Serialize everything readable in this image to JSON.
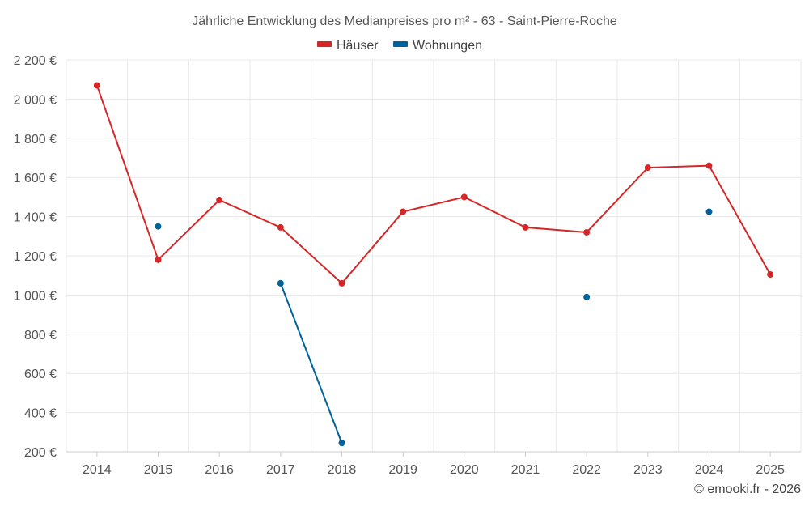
{
  "chart_data": {
    "type": "line",
    "title": "Jährliche Entwicklung des Medianpreises pro m² - 63 - Saint-Pierre-Roche",
    "categories": [
      "2014",
      "2015",
      "2016",
      "2017",
      "2018",
      "2019",
      "2020",
      "2021",
      "2022",
      "2023",
      "2024",
      "2025"
    ],
    "ylim": [
      200,
      2200
    ],
    "yticks": [
      200,
      400,
      600,
      800,
      1000,
      1200,
      1400,
      1600,
      1800,
      2000,
      2200
    ],
    "ytick_labels": [
      "200 €",
      "400 €",
      "600 €",
      "800 €",
      "1 000 €",
      "1 200 €",
      "1 400 €",
      "1 600 €",
      "1 800 €",
      "2 000 €",
      "2 200 €"
    ],
    "grid": true,
    "legend_position": "top-center",
    "series": [
      {
        "name": "Häuser",
        "color": "#d62728",
        "values": [
          2070,
          1180,
          1485,
          1345,
          1060,
          1425,
          1500,
          1345,
          1320,
          1650,
          1660,
          1105
        ]
      },
      {
        "name": "Wohnungen",
        "color": "#00629b",
        "values": [
          null,
          1350,
          null,
          1060,
          245,
          null,
          null,
          null,
          990,
          null,
          1425,
          null
        ]
      }
    ]
  },
  "credit": "© emooki.fr - 2026"
}
